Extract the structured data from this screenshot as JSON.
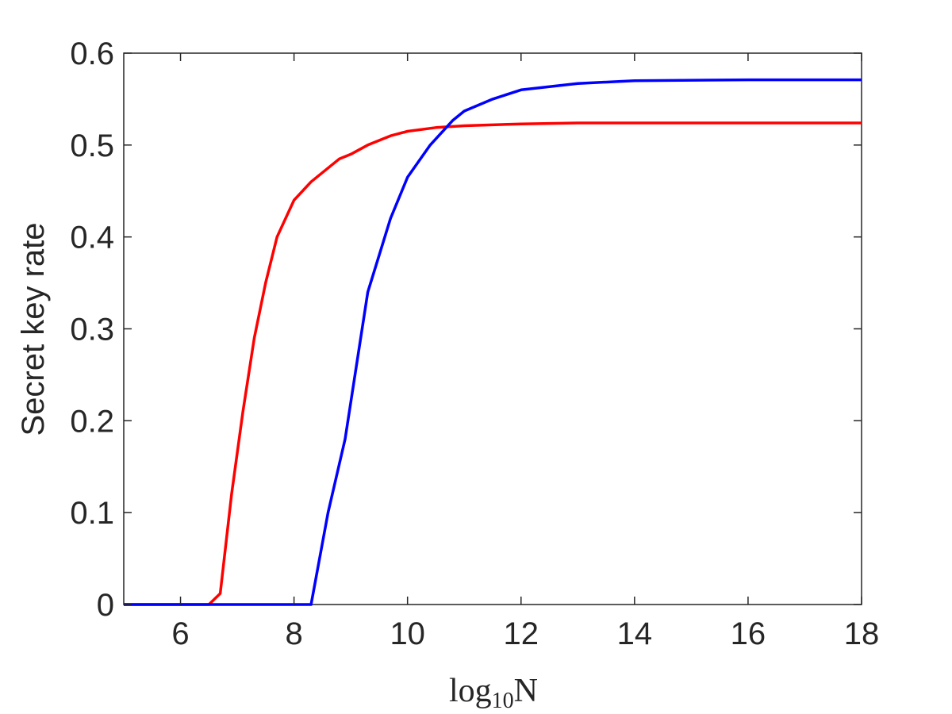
{
  "chart_data": {
    "type": "line",
    "title": "",
    "xlabel": {
      "base": "log",
      "subscript": "10",
      "suffix": "N"
    },
    "ylabel": "Secret key rate",
    "xlim": [
      5,
      18
    ],
    "ylim": [
      0,
      0.6
    ],
    "xticks": [
      6,
      8,
      10,
      12,
      14,
      16,
      18
    ],
    "yticks": [
      0,
      0.1,
      0.2,
      0.3,
      0.4,
      0.5,
      0.6
    ],
    "ytick_labels": [
      "0",
      "0.1",
      "0.2",
      "0.3",
      "0.4",
      "0.5",
      "0.6"
    ],
    "grid": false,
    "series": [
      {
        "color": "#ff0000",
        "x": [
          5,
          6.5,
          6.7,
          6.9,
          7.1,
          7.3,
          7.5,
          7.7,
          8.0,
          8.3,
          8.6,
          8.8,
          9.0,
          9.3,
          9.7,
          10.0,
          10.5,
          11.0,
          12.0,
          13.0,
          14.0,
          16.0,
          18.0
        ],
        "y": [
          0,
          0,
          0.012,
          0.12,
          0.21,
          0.29,
          0.35,
          0.4,
          0.44,
          0.46,
          0.475,
          0.485,
          0.49,
          0.5,
          0.51,
          0.515,
          0.519,
          0.521,
          0.523,
          0.524,
          0.524,
          0.524,
          0.524
        ]
      },
      {
        "color": "#0000ff",
        "x": [
          5,
          8.3,
          8.6,
          8.9,
          9.1,
          9.3,
          9.7,
          10.0,
          10.4,
          10.8,
          11.0,
          11.5,
          12.0,
          13.0,
          14.0,
          16.0,
          18.0
        ],
        "y": [
          0,
          0,
          0.1,
          0.18,
          0.26,
          0.34,
          0.42,
          0.465,
          0.5,
          0.527,
          0.537,
          0.55,
          0.56,
          0.567,
          0.57,
          0.571,
          0.571
        ]
      }
    ]
  }
}
